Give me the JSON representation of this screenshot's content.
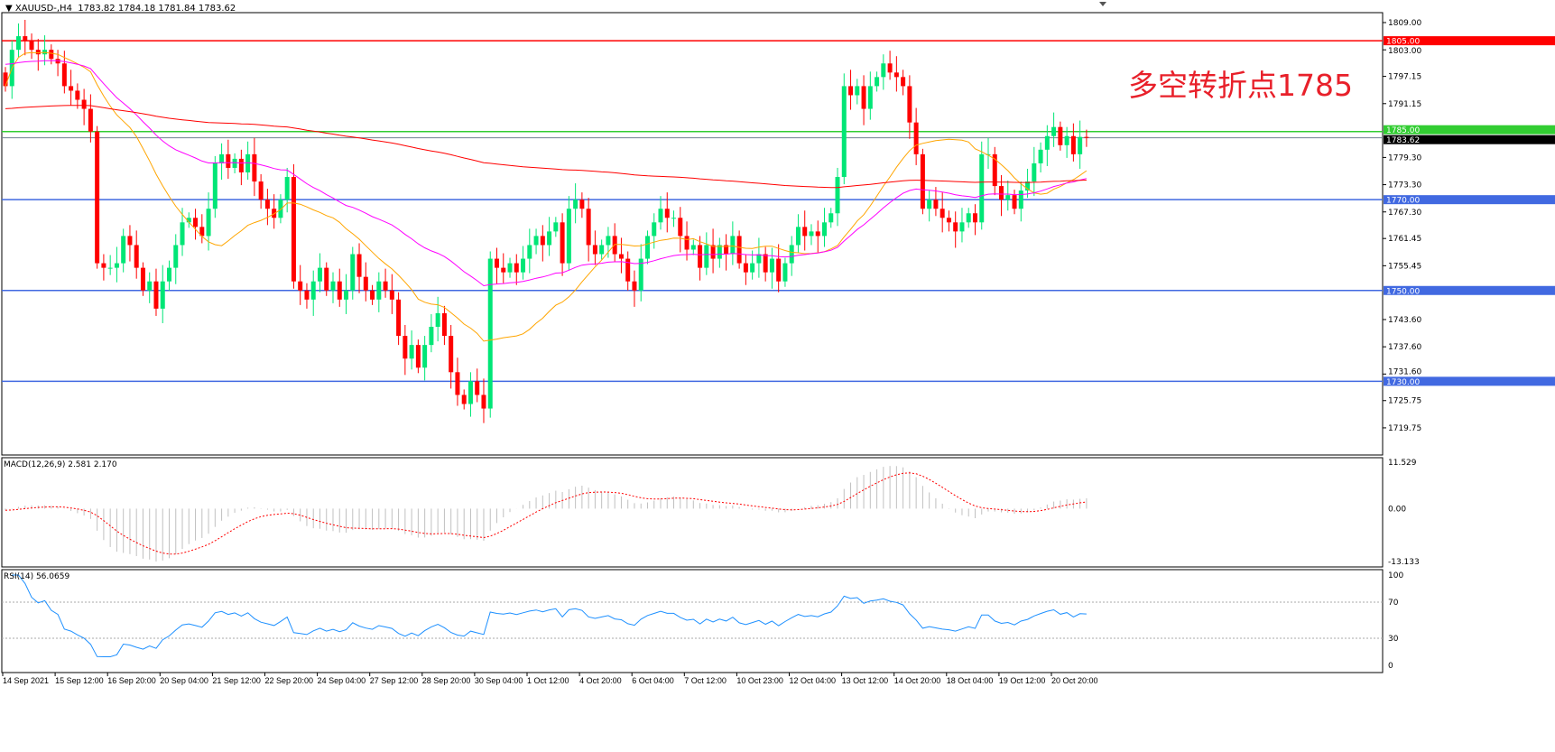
{
  "header": {
    "symbol": "XAUUSD-,H4",
    "ohlc": "1783.82 1784.18 1781.84 1783.62"
  },
  "annotation": {
    "text": "多空转折点1785",
    "color": "#e8202a"
  },
  "indicators": {
    "macd_label": "MACD(12,26,9) 2.581 2.170",
    "rsi_label": "RSI(14) 56.0659"
  },
  "colors": {
    "bull": "#00e676",
    "bear": "#ff0000",
    "ma_fast": "#ffa500",
    "ma_mid": "#ff00ff",
    "ma_slow": "#ff0000",
    "rsi": "#1e90ff",
    "macd_signal": "#ff0000",
    "macd_hist": "#c0c0c0"
  },
  "chart_data": {
    "type": "candlestick",
    "price_axis_ticks": [
      "1809.00",
      "1803.00",
      "1797.15",
      "1791.15",
      "1779.30",
      "1773.30",
      "1767.30",
      "1761.45",
      "1755.45",
      "1743.60",
      "1737.60",
      "1731.60",
      "1725.75",
      "1719.75"
    ],
    "price_range": [
      1719.75,
      1812
    ],
    "levels": [
      {
        "value": 1805.0,
        "label": "1805.00",
        "color": "#ff0000"
      },
      {
        "value": 1785.0,
        "label": "1785.00",
        "color": "#32cd32"
      },
      {
        "value": 1770.0,
        "label": "1770.00",
        "color": "#4169e1"
      },
      {
        "value": 1750.0,
        "label": "1750.00",
        "color": "#4169e1"
      },
      {
        "value": 1730.0,
        "label": "1730.00",
        "color": "#4169e1"
      }
    ],
    "current_price": {
      "value": 1783.62,
      "label": "1783.62"
    },
    "time_labels": [
      "14 Sep 2021",
      "15 Sep 12:00",
      "16 Sep 20:00",
      "20 Sep 04:00",
      "21 Sep 12:00",
      "22 Sep 20:00",
      "24 Sep 04:00",
      "27 Sep 12:00",
      "28 Sep 20:00",
      "30 Sep 04:00",
      "1 Oct 12:00",
      "4 Oct 20:00",
      "6 Oct 04:00",
      "7 Oct 12:00",
      "10 Oct 23:00",
      "12 Oct 04:00",
      "13 Oct 12:00",
      "14 Oct 20:00",
      "18 Oct 04:00",
      "19 Oct 12:00",
      "20 Oct 20:00"
    ],
    "closes": [
      1795,
      1803,
      1806,
      1805,
      1803,
      1802,
      1803,
      1801,
      1800,
      1795,
      1794,
      1792,
      1790,
      1785,
      1756,
      1755,
      1755,
      1756,
      1762,
      1760,
      1755,
      1750,
      1752,
      1746,
      1752,
      1755,
      1760,
      1765,
      1766,
      1764,
      1762,
      1768,
      1778,
      1780,
      1777,
      1779,
      1776,
      1780,
      1774,
      1770,
      1768,
      1766,
      1770,
      1775,
      1752,
      1750,
      1748,
      1752,
      1755,
      1750,
      1752,
      1748,
      1750,
      1758,
      1753,
      1750,
      1748,
      1752,
      1750,
      1748,
      1740,
      1735,
      1738,
      1733,
      1738,
      1742,
      1745,
      1740,
      1732,
      1727,
      1725,
      1730,
      1727,
      1724,
      1757,
      1755,
      1754,
      1756,
      1754,
      1757,
      1760,
      1762,
      1760,
      1763,
      1765,
      1756,
      1768,
      1770,
      1768,
      1760,
      1758,
      1760,
      1762,
      1758,
      1757,
      1752,
      1750,
      1757,
      1762,
      1765,
      1768,
      1766,
      1766,
      1762,
      1759,
      1760,
      1755,
      1760,
      1757,
      1760,
      1758,
      1762,
      1756,
      1754,
      1756,
      1758,
      1754,
      1757,
      1752,
      1756,
      1760,
      1764,
      1762,
      1763,
      1762,
      1765,
      1767,
      1775,
      1795,
      1793,
      1795,
      1790,
      1795,
      1797,
      1800,
      1798,
      1797,
      1795,
      1787,
      1780,
      1768,
      1770,
      1768,
      1766,
      1765,
      1763,
      1765,
      1767,
      1765,
      1780,
      1780,
      1773,
      1770,
      1771,
      1768,
      1772,
      1774,
      1778,
      1781,
      1784,
      1786,
      1782,
      1784,
      1780,
      1783.82,
      1783.62
    ],
    "macd": {
      "params": "12,26,9",
      "value": 2.581,
      "signal": 2.17,
      "axis_ticks": [
        "11.529",
        "0.00",
        "-13.133"
      ],
      "range": [
        -13.133,
        11.529
      ]
    },
    "rsi": {
      "period": 14,
      "value": 56.0659,
      "axis_ticks": [
        "100",
        "70",
        "30",
        "0"
      ],
      "levels": [
        70,
        30
      ]
    }
  }
}
